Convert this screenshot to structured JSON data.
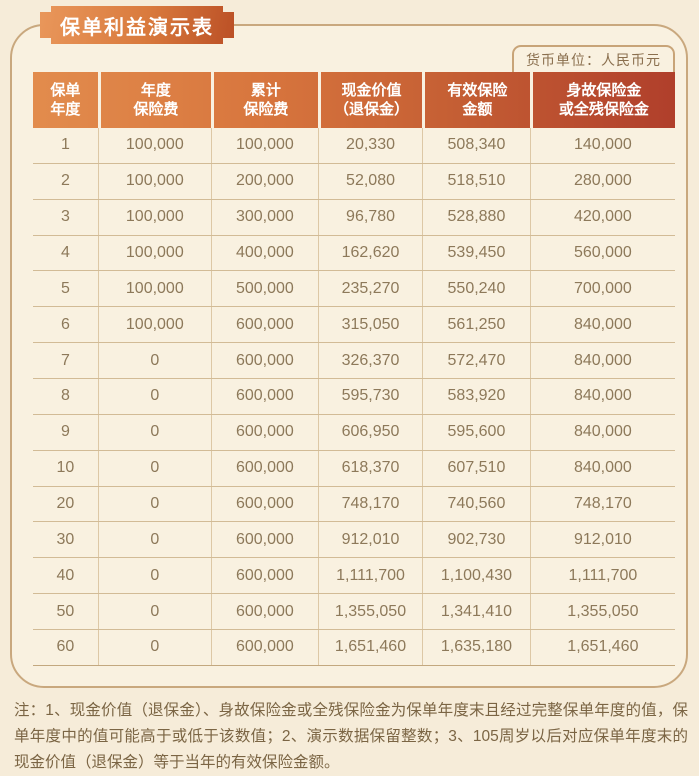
{
  "title": "保单利益演示表",
  "currency_unit": "货币单位：人民币元",
  "table": {
    "columns": [
      {
        "line1": "保单",
        "line2": "年度"
      },
      {
        "line1": "年度",
        "line2": "保险费"
      },
      {
        "line1": "累计",
        "line2": "保险费"
      },
      {
        "line1": "现金价值",
        "line2": "（退保金）"
      },
      {
        "line1": "有效保险",
        "line2": "金额"
      },
      {
        "line1": "身故保险金",
        "line2": "或全残保险金"
      }
    ],
    "rows": [
      [
        "1",
        "100,000",
        "100,000",
        "20,330",
        "508,340",
        "140,000"
      ],
      [
        "2",
        "100,000",
        "200,000",
        "52,080",
        "518,510",
        "280,000"
      ],
      [
        "3",
        "100,000",
        "300,000",
        "96,780",
        "528,880",
        "420,000"
      ],
      [
        "4",
        "100,000",
        "400,000",
        "162,620",
        "539,450",
        "560,000"
      ],
      [
        "5",
        "100,000",
        "500,000",
        "235,270",
        "550,240",
        "700,000"
      ],
      [
        "6",
        "100,000",
        "600,000",
        "315,050",
        "561,250",
        "840,000"
      ],
      [
        "7",
        "0",
        "600,000",
        "326,370",
        "572,470",
        "840,000"
      ],
      [
        "8",
        "0",
        "600,000",
        "595,730",
        "583,920",
        "840,000"
      ],
      [
        "9",
        "0",
        "600,000",
        "606,950",
        "595,600",
        "840,000"
      ],
      [
        "10",
        "0",
        "600,000",
        "618,370",
        "607,510",
        "840,000"
      ],
      [
        "20",
        "0",
        "600,000",
        "748,170",
        "740,560",
        "748,170"
      ],
      [
        "30",
        "0",
        "600,000",
        "912,010",
        "902,730",
        "912,010"
      ],
      [
        "40",
        "0",
        "600,000",
        "1,111,700",
        "1,100,430",
        "1,111,700"
      ],
      [
        "50",
        "0",
        "600,000",
        "1,355,050",
        "1,341,410",
        "1,355,050"
      ],
      [
        "60",
        "0",
        "600,000",
        "1,651,460",
        "1,635,180",
        "1,651,460"
      ]
    ]
  },
  "note": "注：1、现金价值（退保金）、身故保险金或全残保险金为保单年度末且经过完整保单年度的值，保单年度中的值可能高于或低于该数值；2、演示数据保留整数；3、105周岁以后对应保单年度末的现金价值（退保金）等于当年的有效保险金额。",
  "colors": {
    "page_background": "#f6ecd9",
    "panel_background": "#f9f1e0",
    "panel_border": "#c9a87e",
    "badge_gradient_start": "#e9975b",
    "badge_gradient_end": "#bb5026",
    "header_gradient_start": "#e28c4d",
    "header_gradient_end": "#b03f2b",
    "header_text": "#ffffff",
    "cell_text": "#8d795a",
    "row_divider": "#d2bb96",
    "note_text": "#7b6544"
  }
}
